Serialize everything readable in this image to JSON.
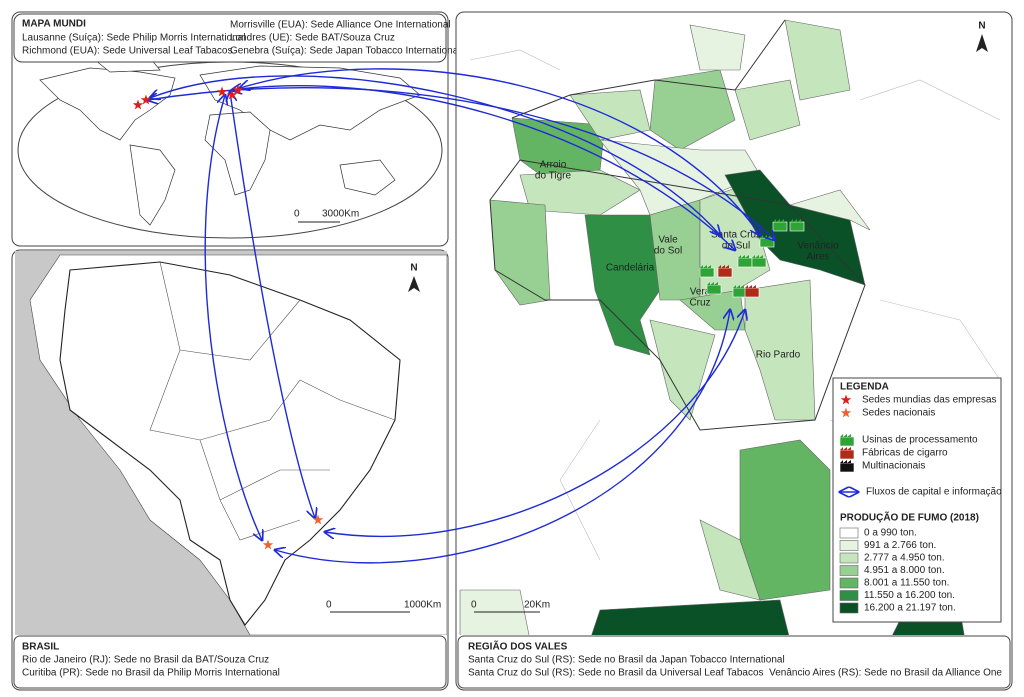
{
  "world": {
    "title": "MAPA MUNDI",
    "left": [
      "Lausanne (Suíça): Sede Philip Morris International",
      "Richmond (EUA): Sede Universal Leaf Tabacos"
    ],
    "right": [
      "Morrisville (EUA): Sede Alliance One International",
      "Londres (UE): Sede BAT/Souza Cruz",
      "Genebra (Suíça): Sede Japan Tobacco International"
    ],
    "scale": [
      "0",
      "3000Km"
    ]
  },
  "brazil": {
    "north": "N",
    "scale": [
      "0",
      "1000Km"
    ],
    "footer": {
      "title": "BRASIL",
      "lines": [
        "Rio de Janeiro (RJ): Sede no Brasil da BAT/Souza Cruz",
        "Curitiba (PR): Sede no Brasil da Philip Morris International"
      ]
    }
  },
  "region": {
    "north": "N",
    "places": [
      {
        "lines": [
          "Arroio",
          "do Tigre"
        ]
      },
      {
        "lines": [
          "Vale",
          "do Sol"
        ]
      },
      {
        "lines": [
          "Candelária"
        ]
      },
      {
        "lines": [
          "Santa Cruz",
          "do Sul"
        ]
      },
      {
        "lines": [
          "Venâncio",
          "Aires"
        ]
      },
      {
        "lines": [
          "Vera",
          "Cruz"
        ]
      },
      {
        "lines": [
          "Rio Pardo"
        ]
      }
    ],
    "scale": [
      "0",
      "20Km"
    ],
    "footer": {
      "title": "REGIÃO DOS VALES",
      "left": [
        "Santa Cruz do Sul (RS): Sede no Brasil da Japan Tobacco International",
        "Santa Cruz do Sul (RS): Sede no Brasil da Universal Leaf Tabacos"
      ],
      "right": "Venâncio Aires (RS): Sede no Brasil da Alliance One"
    }
  },
  "legend": {
    "title": "LEGENDA",
    "symbols": [
      "Sedes mundias das empresas",
      "Sedes nacionais",
      "Usinas de processamento",
      "Fábricas de cigarro",
      "Multinacionais"
    ],
    "flow": "Fluxos de capital e informação",
    "production": {
      "title": "PRODUÇÃO DE FUMO (2018)",
      "classes": [
        {
          "label": "0 a 990 ton.",
          "color": "#ffffff"
        },
        {
          "label": "991 a 2.766 ton.",
          "color": "#e5f3e0"
        },
        {
          "label": "2.777 a 4.950 ton.",
          "color": "#c5e5bd"
        },
        {
          "label": "4.951 a 8.000 ton.",
          "color": "#98d093"
        },
        {
          "label": "8.001 a 11.550 ton.",
          "color": "#63b564"
        },
        {
          "label": "11.550 a 16.200 ton.",
          "color": "#2f8f45"
        },
        {
          "label": "16.200 a 21.197 ton.",
          "color": "#0b5128"
        }
      ]
    }
  }
}
